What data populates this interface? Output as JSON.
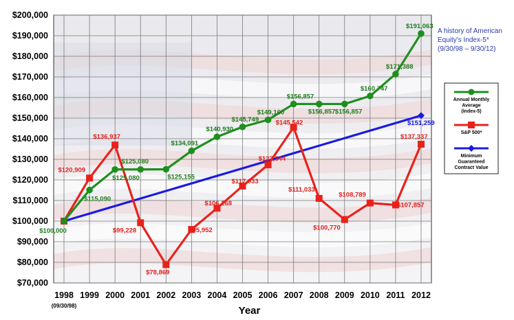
{
  "chart_data": {
    "type": "line",
    "xlabel": "Year",
    "x_sublabel": "(09/30/98)",
    "categories": [
      "1998",
      "1999",
      "2000",
      "2001",
      "2002",
      "2003",
      "2004",
      "2005",
      "2006",
      "2007",
      "2008",
      "2009",
      "2010",
      "2011",
      "2012"
    ],
    "ylim": [
      70000,
      200000
    ],
    "yticks": [
      "$70,000",
      "$80,000",
      "$90,000",
      "$100,000",
      "$110,000",
      "$120,000",
      "$130,000",
      "$140,000",
      "$150,000",
      "$160,000",
      "$170,000",
      "$180,000",
      "$190,000",
      "$200,000"
    ],
    "grid": true,
    "legend_position": "right",
    "annotation": {
      "line1": "A history of American",
      "line2": "Equity's Index-5*",
      "line3": "(9/30/98 – 9/30/12)"
    },
    "series": [
      {
        "name": "Annual Monthly Average (Index-5)",
        "legend_lines": [
          "Annual Monthly",
          "Average",
          "(Index-5)"
        ],
        "color": "#1e8f1e",
        "x": [
          0,
          1,
          2,
          3,
          4,
          5,
          6,
          7,
          8,
          9,
          10,
          11,
          12,
          13,
          14
        ],
        "values": [
          100000,
          115090,
          125080,
          125080,
          125155,
          134091,
          140930,
          145749,
          149160,
          156857,
          156857,
          156857,
          160747,
          171388,
          191063
        ],
        "labels": [
          "$100,000",
          "$115,090",
          "$125,080",
          "$125,080",
          "$125,155",
          "$134,091",
          "$140,930",
          "$145,749",
          "$149,160",
          "$156,857",
          "$156,857",
          "$156,857",
          "$160,747",
          "$171,388",
          "$191,063"
        ]
      },
      {
        "name": "S&P 500*",
        "legend_lines": [
          "S&P 500*"
        ],
        "color": "#e8221b",
        "x": [
          0,
          1,
          2,
          3,
          4,
          5,
          6,
          7,
          8,
          9,
          10,
          11,
          12,
          13,
          14
        ],
        "values": [
          100000,
          120909,
          136937,
          99228,
          78869,
          95952,
          106268,
          117033,
          127344,
          145542,
          111033,
          100770,
          108789,
          107857,
          137337
        ],
        "labels": [
          "",
          "$120,909",
          "$136,937",
          "$99,228",
          "$78,869",
          "$95,952",
          "$106,268",
          "$117,033",
          "$127,344",
          "$145,542",
          "$111,033",
          "$100,770",
          "$108,789",
          "$107,857",
          "$137,337"
        ]
      },
      {
        "name": "Minimum Guaranteed Contract Value",
        "legend_lines": [
          "Minimum",
          "Guaranteed",
          "Contract Value"
        ],
        "color": "#1a1ae0",
        "x": [
          0,
          14
        ],
        "values": [
          100000,
          151259
        ],
        "labels": [
          "",
          "$151,259"
        ]
      }
    ]
  }
}
